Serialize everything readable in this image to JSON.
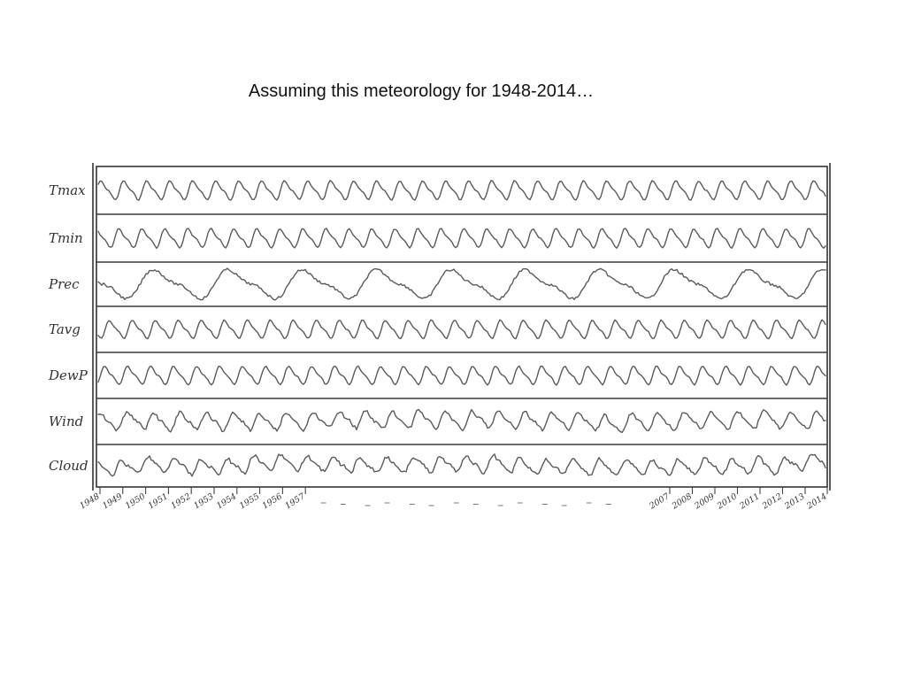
{
  "slide": {
    "title": "Assuming this meteorology for 1948-2014…"
  },
  "diagram": {
    "rows": [
      {
        "label": "Tmax",
        "pattern": "regular"
      },
      {
        "label": "Tmin",
        "pattern": "regular"
      },
      {
        "label": "Prec",
        "pattern": "broad"
      },
      {
        "label": "Tavg",
        "pattern": "regular"
      },
      {
        "label": "DewP",
        "pattern": "regular"
      },
      {
        "label": "Wind",
        "pattern": "irregular"
      },
      {
        "label": "Cloud",
        "pattern": "irregular"
      }
    ],
    "years_start": [
      "1948",
      "1949",
      "1950",
      "1951",
      "1952",
      "1953",
      "1954",
      "1955",
      "1956",
      "1957"
    ],
    "years_end": [
      "2007",
      "2008",
      "2009",
      "2010",
      "2011",
      "2012",
      "2013",
      "2014"
    ]
  }
}
